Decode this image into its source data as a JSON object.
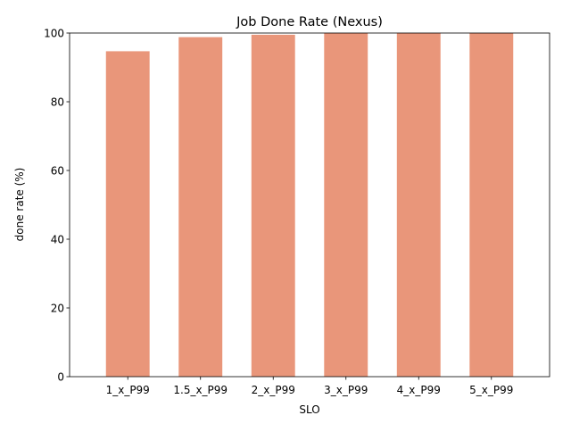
{
  "chart_data": {
    "type": "bar",
    "title": "Job Done Rate (Nexus)",
    "xlabel": "SLO",
    "ylabel": "done rate (%)",
    "categories": [
      "1_x_P99",
      "1.5_x_P99",
      "2_x_P99",
      "3_x_P99",
      "4_x_P99",
      "5_x_P99"
    ],
    "values": [
      94.7,
      98.8,
      99.5,
      100,
      100,
      100
    ],
    "ylim": [
      0,
      100
    ],
    "yticks": [
      0,
      20,
      40,
      60,
      80,
      100
    ],
    "grid": false,
    "legend": "none",
    "bar_color": "#e9967a"
  }
}
